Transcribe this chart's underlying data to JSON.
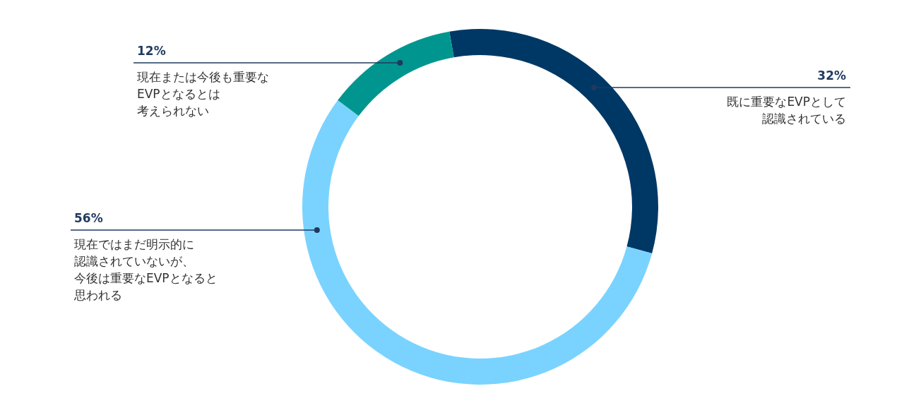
{
  "chart_data": {
    "type": "donut",
    "categories": [
      "既に重要なEVPとして認識されている",
      "現在ではまだ明示的に認識されていないが、今後は重要なEVPとなると思われる",
      "現在または今後も重要なEVPとなるとは考えられない"
    ],
    "values": [
      32,
      56,
      12
    ],
    "value_labels": [
      "32%",
      "56%",
      "12%"
    ],
    "colors": [
      "#003865",
      "#7ad3ff",
      "#00968f"
    ],
    "legend": false
  }
}
